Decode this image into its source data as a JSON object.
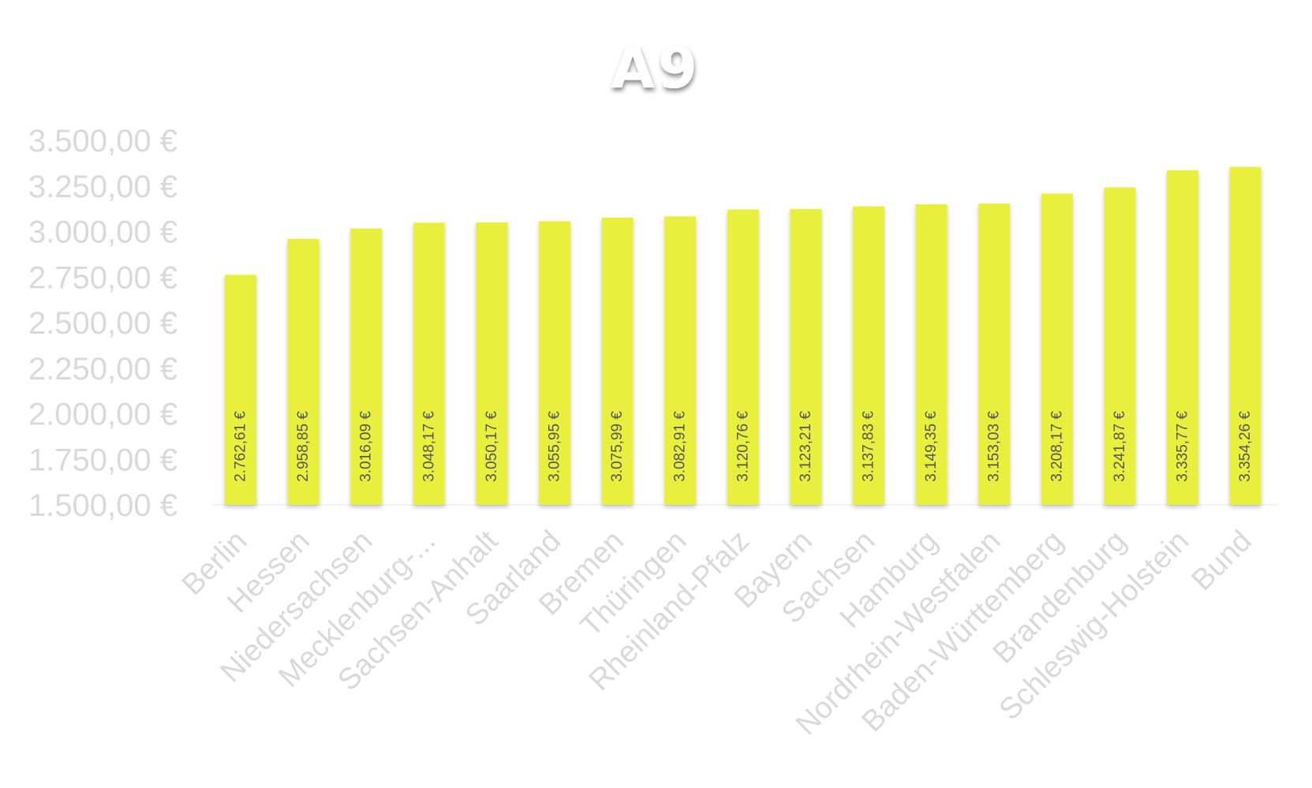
{
  "chart_data": {
    "type": "bar",
    "title": "A9",
    "categories": [
      "Berlin",
      "Hessen",
      "Niedersachsen",
      "Mecklenburg-...",
      "Sachsen-Anhalt",
      "Saarland",
      "Bremen",
      "Thüringen",
      "Rheinland-Pfalz",
      "Bayern",
      "Sachsen",
      "Hamburg",
      "Nordrhein-Westfalen",
      "Baden-Württemberg",
      "Brandenburg",
      "Schleswig-Holstein",
      "Bund"
    ],
    "values": [
      2762.61,
      2958.85,
      3016.09,
      3048.17,
      3050.17,
      3055.95,
      3075.99,
      3082.91,
      3120.76,
      3123.21,
      3137.83,
      3149.35,
      3153.03,
      3208.17,
      3241.87,
      3335.77,
      3354.26
    ],
    "data_labels": [
      "2.762,61 €",
      "2.958,85 €",
      "3.016,09 €",
      "3.048,17 €",
      "3.050,17 €",
      "3.055,95 €",
      "3.075,99 €",
      "3.082,91 €",
      "3.120,76 €",
      "3.123,21 €",
      "3.137,83 €",
      "3.149,35 €",
      "3.153,03 €",
      "3.208,17 €",
      "3.241,87 €",
      "3.335,77 €",
      "3.354,26 €"
    ],
    "yticks": [
      1500,
      1750,
      2000,
      2250,
      2500,
      2750,
      3000,
      3250,
      3500
    ],
    "ytick_labels": [
      "1.500,00 €",
      "1.750,00 €",
      "2.000,00 €",
      "2.250,00 €",
      "2.500,00 €",
      "2.750,00 €",
      "3.000,00 €",
      "3.250,00 €",
      "3.500,00 €"
    ],
    "ylim": [
      1500,
      3500
    ],
    "xlabel": "",
    "ylabel": "",
    "grid": false,
    "legend": "none",
    "colors": {
      "bar": "#e8f03e",
      "tick_label": "#d9d9d9",
      "data_label": "#555555",
      "title": "#ffffff"
    }
  }
}
